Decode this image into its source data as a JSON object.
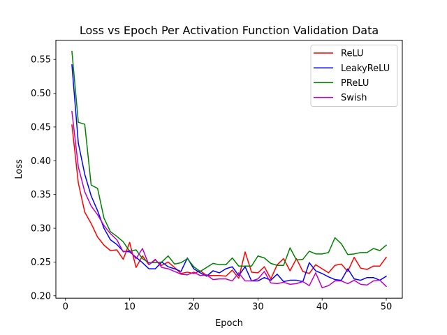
{
  "chart_data": {
    "type": "line",
    "title": "Loss vs Epoch Per Activation Function Validation Data",
    "xlabel": "Epoch",
    "ylabel": "Loss",
    "xlim": [
      -1.5,
      52.5
    ],
    "ylim": [
      0.1965,
      0.5785
    ],
    "grid": false,
    "legend_position": "top-right",
    "x_ticks": [
      {
        "value": 0,
        "label": "0"
      },
      {
        "value": 10,
        "label": "10"
      },
      {
        "value": 20,
        "label": "20"
      },
      {
        "value": 30,
        "label": "30"
      },
      {
        "value": 40,
        "label": "40"
      },
      {
        "value": 50,
        "label": "50"
      }
    ],
    "y_ticks": [
      {
        "value": 0.2,
        "label": "0.20"
      },
      {
        "value": 0.25,
        "label": "0.25"
      },
      {
        "value": 0.3,
        "label": "0.30"
      },
      {
        "value": 0.35,
        "label": "0.35"
      },
      {
        "value": 0.4,
        "label": "0.40"
      },
      {
        "value": 0.45,
        "label": "0.45"
      },
      {
        "value": 0.5,
        "label": "0.50"
      },
      {
        "value": 0.55,
        "label": "0.55"
      }
    ],
    "x": [
      1,
      2,
      3,
      4,
      5,
      6,
      7,
      8,
      9,
      10,
      11,
      12,
      13,
      14,
      15,
      16,
      17,
      18,
      19,
      20,
      21,
      22,
      23,
      24,
      25,
      26,
      27,
      28,
      29,
      30,
      31,
      32,
      33,
      34,
      35,
      36,
      37,
      38,
      39,
      40,
      41,
      42,
      43,
      44,
      45,
      46,
      47,
      48,
      49,
      50
    ],
    "series": [
      {
        "name": "ReLU",
        "color": "#ff0000",
        "values": [
          0.453,
          0.367,
          0.324,
          0.307,
          0.287,
          0.275,
          0.267,
          0.268,
          0.254,
          0.279,
          0.242,
          0.259,
          0.246,
          0.253,
          0.245,
          0.25,
          0.242,
          0.233,
          0.235,
          0.233,
          0.237,
          0.23,
          0.23,
          0.23,
          0.229,
          0.238,
          0.226,
          0.265,
          0.235,
          0.234,
          0.243,
          0.225,
          0.246,
          0.255,
          0.237,
          0.255,
          0.236,
          0.233,
          0.246,
          0.24,
          0.234,
          0.245,
          0.247,
          0.236,
          0.257,
          0.241,
          0.239,
          0.244,
          0.244,
          0.257
        ]
      },
      {
        "name": "LeakyReLU",
        "color": "#0000ff",
        "values": [
          0.542,
          0.426,
          0.38,
          0.348,
          0.326,
          0.3,
          0.283,
          0.276,
          0.266,
          0.265,
          0.257,
          0.249,
          0.24,
          0.24,
          0.25,
          0.243,
          0.24,
          0.236,
          0.256,
          0.24,
          0.234,
          0.229,
          0.237,
          0.234,
          0.24,
          0.243,
          0.23,
          0.243,
          0.222,
          0.222,
          0.227,
          0.223,
          0.232,
          0.221,
          0.223,
          0.223,
          0.221,
          0.249,
          0.237,
          0.233,
          0.228,
          0.224,
          0.223,
          0.24,
          0.225,
          0.223,
          0.227,
          0.227,
          0.223,
          0.229
        ]
      },
      {
        "name": "PReLU",
        "color": "#008000",
        "values": [
          0.562,
          0.457,
          0.454,
          0.364,
          0.359,
          0.315,
          0.295,
          0.288,
          0.28,
          0.266,
          0.268,
          0.255,
          0.249,
          0.249,
          0.25,
          0.259,
          0.247,
          0.249,
          0.255,
          0.243,
          0.236,
          0.242,
          0.248,
          0.246,
          0.246,
          0.256,
          0.244,
          0.244,
          0.244,
          0.259,
          0.256,
          0.248,
          0.245,
          0.245,
          0.271,
          0.253,
          0.254,
          0.266,
          0.262,
          0.262,
          0.264,
          0.286,
          0.277,
          0.261,
          0.262,
          0.264,
          0.264,
          0.27,
          0.267,
          0.275
        ]
      },
      {
        "name": "Swish",
        "color": "#bf00bf",
        "values": [
          0.473,
          0.391,
          0.354,
          0.333,
          0.32,
          0.304,
          0.292,
          0.283,
          0.265,
          0.267,
          0.255,
          0.27,
          0.246,
          0.254,
          0.242,
          0.24,
          0.236,
          0.232,
          0.231,
          0.235,
          0.23,
          0.231,
          0.224,
          0.225,
          0.225,
          0.222,
          0.234,
          0.222,
          0.222,
          0.225,
          0.236,
          0.219,
          0.218,
          0.22,
          0.217,
          0.218,
          0.221,
          0.215,
          0.234,
          0.212,
          0.215,
          0.222,
          0.222,
          0.218,
          0.223,
          0.217,
          0.216,
          0.222,
          0.223,
          0.214
        ]
      }
    ]
  }
}
